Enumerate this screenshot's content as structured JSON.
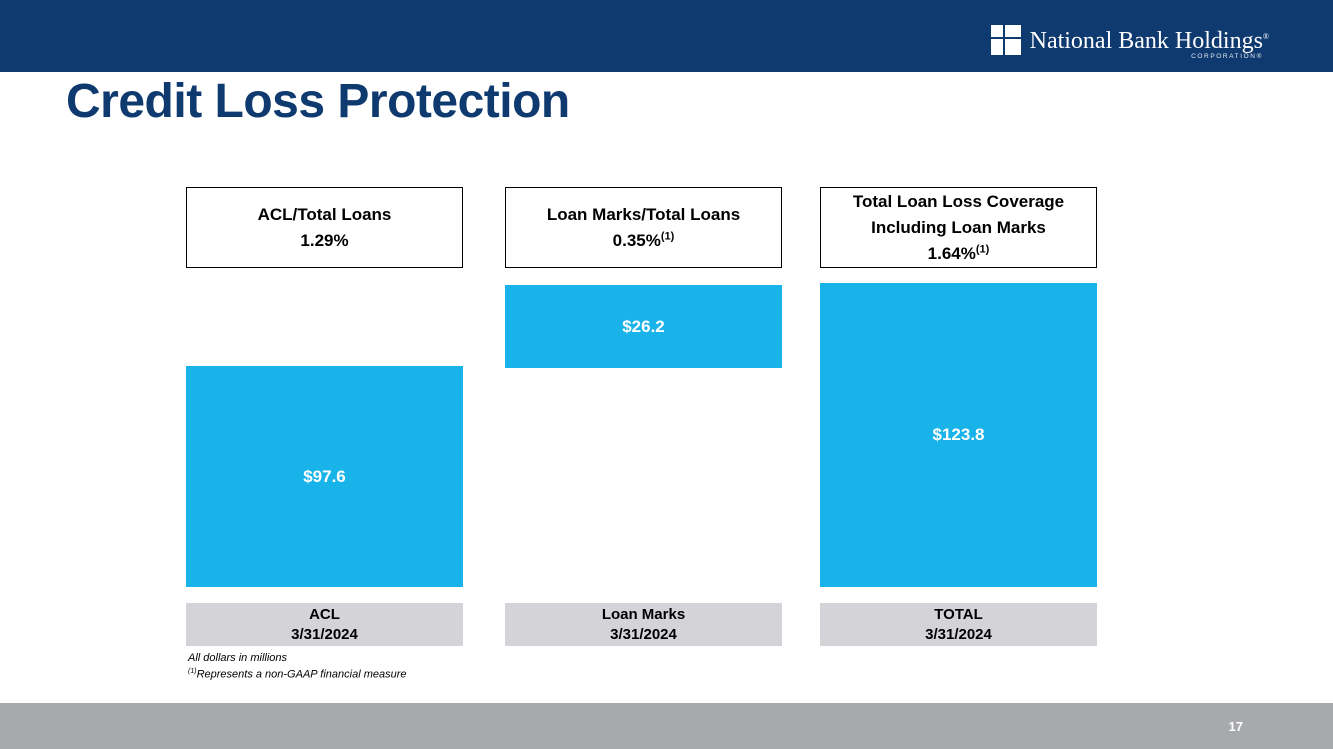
{
  "header": {
    "logo": {
      "name": "National Bank Holdings",
      "name_mark": "®",
      "subtitle": "CORPORATION",
      "subtitle_mark": "®"
    }
  },
  "title": "Credit Loss Protection",
  "columns": [
    {
      "header_line1": "ACL/Total Loans",
      "header_line2": "1.29%",
      "header_sup": "",
      "bar_label": "$97.6",
      "footer_line1": "ACL",
      "footer_line2": "3/31/2024"
    },
    {
      "header_line1": "Loan Marks/Total Loans",
      "header_line2": "0.35%",
      "header_sup": "(1)",
      "bar_label": "$26.2",
      "footer_line1": "Loan Marks",
      "footer_line2": "3/31/2024"
    },
    {
      "header_line1": "Total Loan Loss Coverage",
      "header_line1b": "Including Loan Marks",
      "header_line2": "1.64%",
      "header_sup": "(1)",
      "bar_label": "$123.8",
      "footer_line1": "TOTAL",
      "footer_line2": "3/31/2024"
    }
  ],
  "footnotes": {
    "line1": "All dollars in millions",
    "line2_sup": "(1)",
    "line2_text": "Represents a non-GAAP financial measure"
  },
  "footer": {
    "page_number": "17"
  },
  "colors": {
    "navy": "#0e3a70",
    "bar_cyan": "#18b3e8",
    "axis_label_gray": "#d4d4d8",
    "bottom_band_gray": "#a7a9ac"
  },
  "chart_data": {
    "type": "bar",
    "title": "Credit Loss Protection",
    "unit": "USD millions",
    "categories": [
      "ACL 3/31/2024",
      "Loan Marks 3/31/2024",
      "TOTAL 3/31/2024"
    ],
    "values": [
      97.6,
      26.2,
      123.8
    ],
    "bar_labels": [
      "$97.6",
      "$26.2",
      "$123.8"
    ],
    "ratio_headers": [
      "ACL/Total Loans 1.29%",
      "Loan Marks/Total Loans 0.35% (1)",
      "Total Loan Loss Coverage Including Loan Marks 1.64% (1)"
    ],
    "annotations": [
      "All dollars in millions",
      "(1) Represents a non-GAAP financial measure"
    ],
    "bar_color": "#18b3e8",
    "legend": "none",
    "grid": false,
    "layout_hint": "ACL bar bottom-aligned; Loan Marks bar stacked above it; TOTAL bar spans combined height ($97.6 + $26.2 = $123.8)"
  }
}
